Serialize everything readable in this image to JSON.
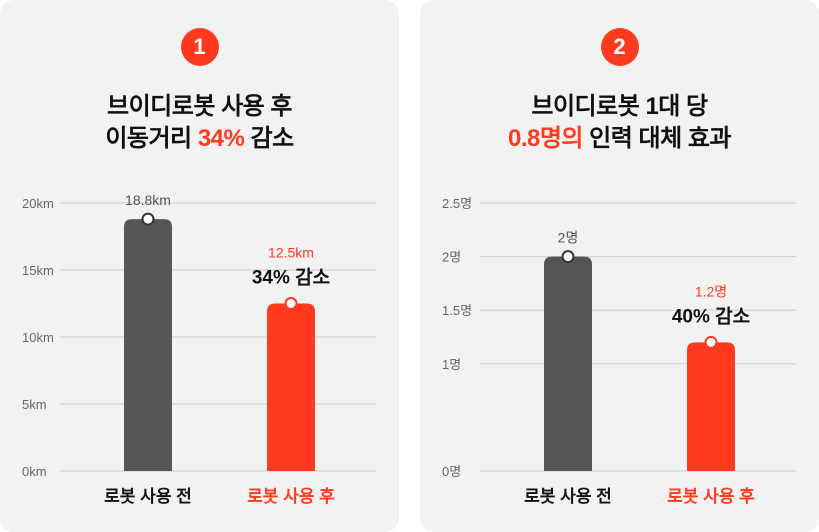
{
  "panels": [
    {
      "badge": "1",
      "title_line1": "브이디로봇 사용 후",
      "title_line2_pre": "이동거리 ",
      "title_line2_hl": "34%",
      "title_line2_post": " 감소"
    },
    {
      "badge": "2",
      "title_line1": "브이디로봇 1대 당",
      "title_line2_pre": "",
      "title_line2_hl": "0.8명의",
      "title_line2_post": " 인력 대체 효과"
    }
  ],
  "colors": {
    "accent": "#ff3a1f",
    "dark_bar": "#555555",
    "grid": "#cccccc"
  },
  "chart_data": [
    {
      "type": "bar",
      "categories": [
        "로봇 사용 전",
        "로봇 사용 후"
      ],
      "values": [
        18.8,
        12.5
      ],
      "value_labels": [
        "18.8km",
        "12.5km"
      ],
      "yticks": [
        "0km",
        "5km",
        "10km",
        "15km",
        "20km"
      ],
      "ytick_values": [
        0,
        5,
        10,
        15,
        20
      ],
      "ylim": [
        0,
        20
      ],
      "annotation": "34% 감소",
      "grid": true
    },
    {
      "type": "bar",
      "categories": [
        "로봇 사용 전",
        "로봇 사용 후"
      ],
      "values": [
        2,
        1.2
      ],
      "value_labels": [
        "2명",
        "1.2명"
      ],
      "yticks": [
        "0명",
        "1명",
        "1.5명",
        "2명",
        "2.5명"
      ],
      "ytick_values": [
        0,
        1,
        1.5,
        2,
        2.5
      ],
      "ylim": [
        0,
        2.5
      ],
      "annotation": "40% 감소",
      "grid": true
    }
  ]
}
